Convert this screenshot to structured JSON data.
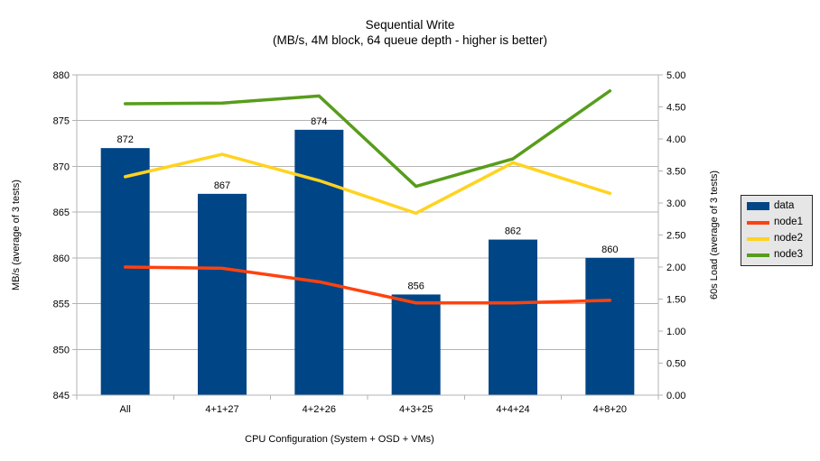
{
  "title": {
    "line1": "Sequential Write",
    "line2": "(MB/s, 4M block, 64 queue depth - higher is better)"
  },
  "chart_data": {
    "type": "bar",
    "subtype": "bar-and-line-dual-axis",
    "title": "Sequential Write",
    "subtitle": "(MB/s, 4M block, 64 queue depth - higher is better)",
    "categories": [
      "All",
      "4+1+27",
      "4+2+26",
      "4+3+25",
      "4+4+24",
      "4+8+20"
    ],
    "bar_series": {
      "name": "data",
      "axis": "left",
      "color": "#004586",
      "values": [
        872,
        867,
        874,
        856,
        862,
        860
      ],
      "labels": [
        "872",
        "867",
        "874",
        "856",
        "862",
        "860"
      ]
    },
    "line_series": [
      {
        "name": "node1",
        "axis": "right",
        "color": "#ff420e",
        "values": [
          2.0,
          1.98,
          1.77,
          1.44,
          1.44,
          1.48
        ]
      },
      {
        "name": "node2",
        "axis": "right",
        "color": "#ffd320",
        "values": [
          3.41,
          3.76,
          3.35,
          2.84,
          3.63,
          3.15
        ]
      },
      {
        "name": "node3",
        "axis": "right",
        "color": "#579d1c",
        "values": [
          4.55,
          4.56,
          4.67,
          3.26,
          3.69,
          4.75
        ]
      }
    ],
    "left_axis": {
      "title": "MB/s (average of 3 tests)",
      "min": 845,
      "max": 880,
      "step": 5,
      "decimals": 0
    },
    "right_axis": {
      "title": "60s Load (average of 3 tests)",
      "min": 0,
      "max": 5,
      "step": 0.5,
      "decimals": 2
    },
    "xlabel": "CPU Configuration (System + OSD + VMs)",
    "legend": {
      "position": "right",
      "entries": [
        "data",
        "node1",
        "node2",
        "node3"
      ]
    },
    "grid": "horizontal",
    "colors": {
      "grid": "#b3b3b3",
      "axis": "#b3b3b3",
      "text": "#000000",
      "legend_bg": "#e6e6e6",
      "background": "#ffffff"
    }
  }
}
